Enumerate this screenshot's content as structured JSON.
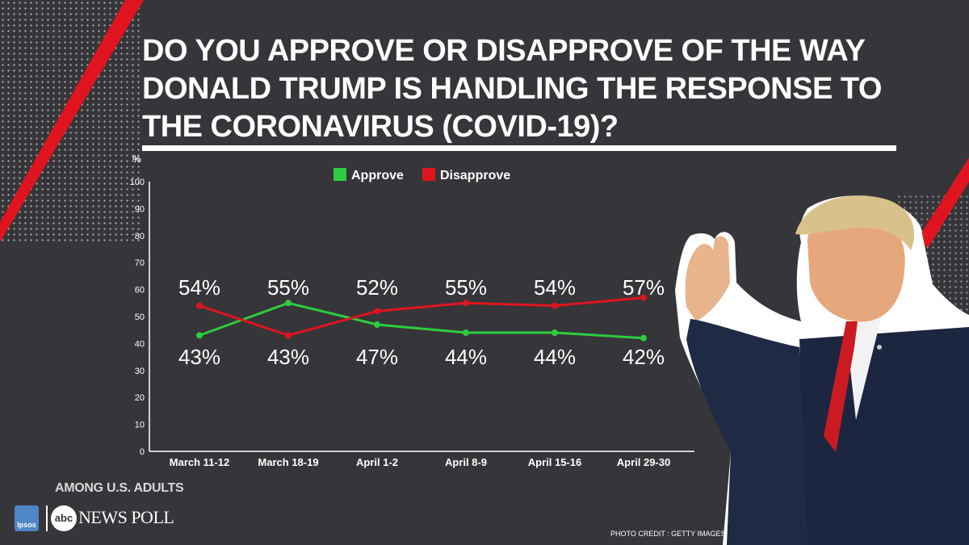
{
  "title": "Do you approve or disapprove of the way Donald Trump is handling the response to the coronavirus (COVID-19)?",
  "footer": {
    "note": "AMONG U.S. ADULTS",
    "ipsos_logo": "Ipsos",
    "abc_logo": "abc",
    "news_poll": "NEWS POLL",
    "photo_credit": "PHOTO CREDIT : GETTY IMAGES"
  },
  "colors": {
    "background": "#363539",
    "approve": "#2ecc40",
    "disapprove": "#e0141e",
    "accent_stripe": "#e0141e"
  },
  "chart_data": {
    "type": "line",
    "ylabel": "%",
    "ylim": [
      0,
      100
    ],
    "yticks": [
      0,
      10,
      20,
      30,
      40,
      50,
      60,
      70,
      80,
      90,
      100
    ],
    "categories": [
      "March 11-12",
      "March 18-19",
      "April 1-2",
      "April 8-9",
      "April 15-16",
      "April 29-30"
    ],
    "series": [
      {
        "name": "Approve",
        "color": "#2ecc40",
        "values": [
          43,
          55,
          47,
          44,
          44,
          42
        ],
        "labels": [
          "43%",
          "55%",
          "47%",
          "44%",
          "44%",
          "42%"
        ]
      },
      {
        "name": "Disapprove",
        "color": "#e0141e",
        "values": [
          54,
          43,
          52,
          55,
          54,
          57
        ],
        "labels": [
          "54%",
          "43%",
          "52%",
          "55%",
          "54%",
          "57%"
        ]
      }
    ],
    "legend_position": "top",
    "grid": false
  }
}
